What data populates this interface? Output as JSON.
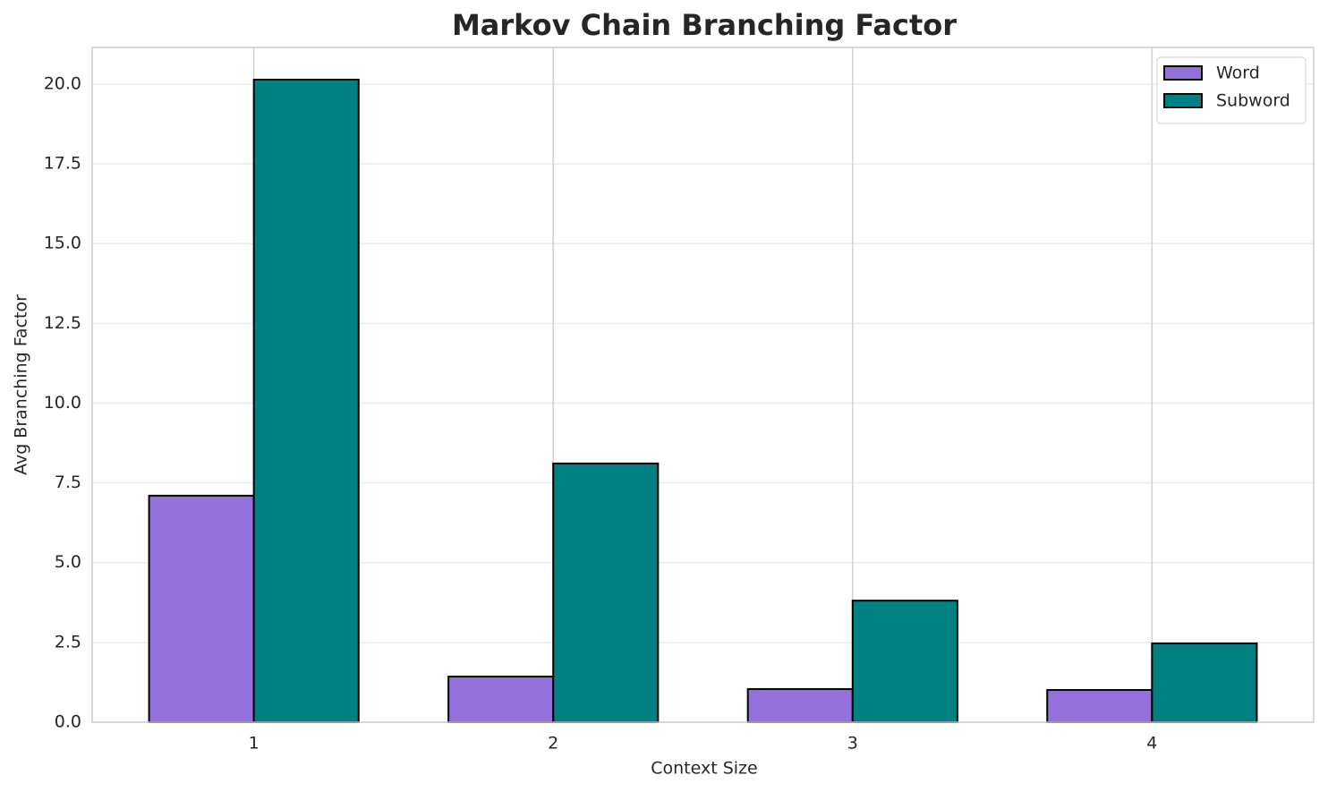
{
  "chart_data": {
    "type": "bar",
    "title": "Markov Chain Branching Factor",
    "x_label": "Context Size",
    "y_label": "Avg Branching Factor",
    "categories": [
      "1",
      "2",
      "3",
      "4"
    ],
    "series": [
      {
        "name": "Word",
        "color": "#9370db",
        "values": [
          7.1,
          1.43,
          1.04,
          1.01
        ]
      },
      {
        "name": "Subword",
        "color": "#008080",
        "values": [
          20.14,
          8.11,
          3.81,
          2.47
        ]
      }
    ],
    "ylim": [
      0,
      21.15
    ],
    "yticks": [
      {
        "value": 0,
        "label": "0.0"
      },
      {
        "value": 2.5,
        "label": "2.5"
      },
      {
        "value": 5,
        "label": "5.0"
      },
      {
        "value": 7.5,
        "label": "7.5"
      },
      {
        "value": 10,
        "label": "10.0"
      },
      {
        "value": 12.5,
        "label": "12.5"
      },
      {
        "value": 15,
        "label": "15.0"
      },
      {
        "value": 17.5,
        "label": "17.5"
      },
      {
        "value": 20,
        "label": "20.0"
      }
    ],
    "grid": true,
    "legend": "upper right"
  }
}
